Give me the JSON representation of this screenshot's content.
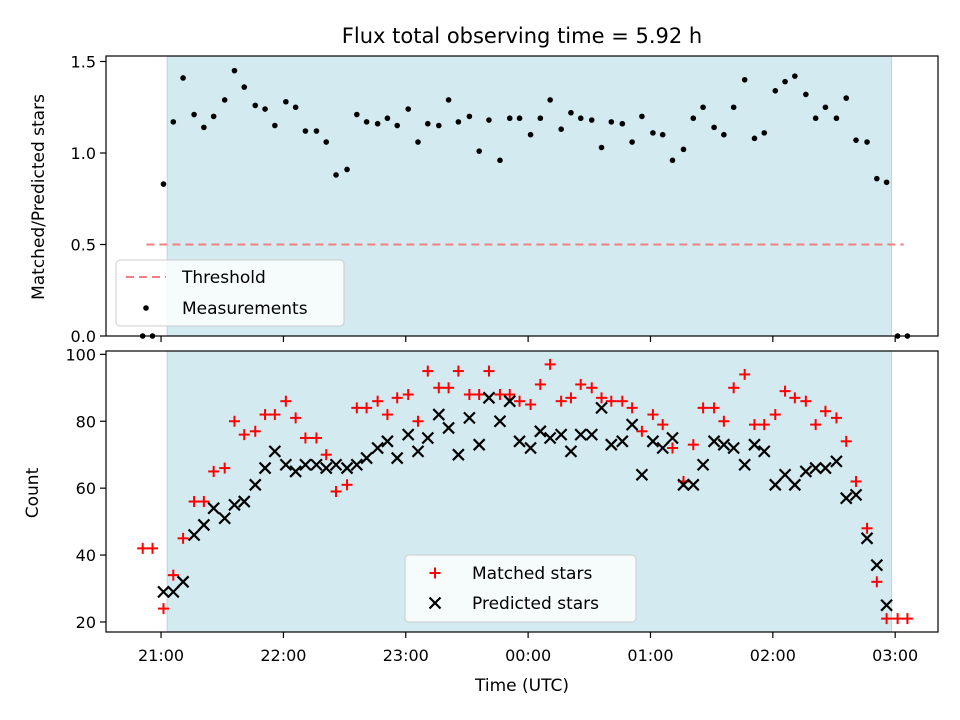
{
  "chart_data": [
    {
      "type": "scatter",
      "panel": "top",
      "title": "Flux total observing time = 5.92 h",
      "xlabel": "",
      "ylabel": "Matched/Predicted stars",
      "xlim": [
        -0.45,
        6.35
      ],
      "ylim": [
        0,
        1.53
      ],
      "yticks": [
        0.0,
        0.5,
        1.0,
        1.5
      ],
      "ytick_labels": [
        "0.0",
        "0.5",
        "1.0",
        "1.5"
      ],
      "grid": false,
      "shaded_span": [
        0.05,
        5.97
      ],
      "shaded_color": "#d3eaf0",
      "legend_location": "lower-left",
      "threshold": {
        "name": "Threshold",
        "value": 0.5,
        "x_range": [
          -0.12,
          6.07
        ],
        "color": "#f08080"
      },
      "series": [
        {
          "name": "Measurements",
          "color": "#000000",
          "x": [
            -0.15,
            -0.07,
            0.02,
            0.1,
            0.18,
            0.27,
            0.35,
            0.43,
            0.52,
            0.6,
            0.68,
            0.77,
            0.85,
            0.93,
            1.02,
            1.1,
            1.18,
            1.27,
            1.35,
            1.43,
            1.52,
            1.6,
            1.68,
            1.77,
            1.85,
            1.93,
            2.02,
            2.1,
            2.18,
            2.27,
            2.35,
            2.43,
            2.52,
            2.6,
            2.68,
            2.77,
            2.85,
            2.93,
            3.02,
            3.1,
            3.18,
            3.27,
            3.35,
            3.43,
            3.52,
            3.6,
            3.68,
            3.77,
            3.85,
            3.93,
            4.02,
            4.1,
            4.18,
            4.27,
            4.35,
            4.43,
            4.52,
            4.6,
            4.68,
            4.77,
            4.85,
            4.93,
            5.02,
            5.1,
            5.18,
            5.27,
            5.35,
            5.43,
            5.52,
            5.6,
            5.68,
            5.77,
            5.85,
            5.93,
            6.02,
            6.1
          ],
          "y": [
            0.0,
            0.0,
            0.83,
            1.17,
            1.41,
            1.21,
            1.14,
            1.2,
            1.29,
            1.45,
            1.36,
            1.26,
            1.24,
            1.15,
            1.28,
            1.25,
            1.12,
            1.12,
            1.06,
            0.88,
            0.91,
            1.21,
            1.17,
            1.16,
            1.19,
            1.15,
            1.24,
            1.06,
            1.16,
            1.15,
            1.29,
            1.17,
            1.2,
            1.01,
            1.18,
            0.96,
            1.19,
            1.19,
            1.1,
            1.19,
            1.29,
            1.13,
            1.22,
            1.19,
            1.18,
            1.03,
            1.17,
            1.16,
            1.06,
            1.2,
            1.11,
            1.1,
            0.96,
            1.02,
            1.19,
            1.25,
            1.14,
            1.1,
            1.25,
            1.4,
            1.08,
            1.11,
            1.34,
            1.39,
            1.42,
            1.32,
            1.19,
            1.25,
            1.19,
            1.3,
            1.07,
            1.06,
            0.86,
            0.84,
            0.0,
            0.0
          ]
        }
      ]
    },
    {
      "type": "scatter",
      "panel": "bottom",
      "xlabel": "Time (UTC)",
      "ylabel": "Count",
      "xlim": [
        -0.45,
        6.35
      ],
      "ylim": [
        17,
        101
      ],
      "xticks": [
        0,
        1,
        2,
        3,
        4,
        5,
        6
      ],
      "xtick_labels": [
        "21:00",
        "22:00",
        "23:00",
        "00:00",
        "01:00",
        "02:00",
        "03:00"
      ],
      "yticks": [
        20,
        40,
        60,
        80,
        100
      ],
      "ytick_labels": [
        "20",
        "40",
        "60",
        "80",
        "100"
      ],
      "grid": false,
      "shaded_span": [
        0.05,
        5.97
      ],
      "shaded_color": "#d3eaf0",
      "legend_location": "lower-center",
      "series": [
        {
          "name": "Matched stars",
          "marker": "plus",
          "color": "#ff0000",
          "x": [
            -0.15,
            -0.07,
            0.02,
            0.1,
            0.18,
            0.27,
            0.35,
            0.43,
            0.52,
            0.6,
            0.68,
            0.77,
            0.85,
            0.93,
            1.02,
            1.1,
            1.18,
            1.27,
            1.35,
            1.43,
            1.52,
            1.6,
            1.68,
            1.77,
            1.85,
            1.93,
            2.02,
            2.1,
            2.18,
            2.27,
            2.35,
            2.43,
            2.52,
            2.6,
            2.68,
            2.77,
            2.85,
            2.93,
            3.02,
            3.1,
            3.18,
            3.27,
            3.35,
            3.43,
            3.52,
            3.6,
            3.68,
            3.77,
            3.85,
            3.93,
            4.02,
            4.1,
            4.18,
            4.27,
            4.35,
            4.43,
            4.52,
            4.6,
            4.68,
            4.77,
            4.85,
            4.93,
            5.02,
            5.1,
            5.18,
            5.27,
            5.35,
            5.43,
            5.52,
            5.6,
            5.68,
            5.77,
            5.85,
            5.93,
            6.02,
            6.1
          ],
          "y": [
            42,
            42,
            24,
            34,
            45,
            56,
            56,
            65,
            66,
            80,
            76,
            77,
            82,
            82,
            86,
            81,
            75,
            75,
            70,
            59,
            61,
            84,
            84,
            86,
            82,
            87,
            88,
            80,
            95,
            90,
            90,
            95,
            88,
            88,
            95,
            88,
            88,
            86,
            85,
            91,
            97,
            86,
            87,
            91,
            90,
            87,
            86,
            86,
            84,
            77,
            82,
            79,
            72,
            62,
            73,
            84,
            84,
            80,
            90,
            94,
            79,
            79,
            82,
            89,
            87,
            86,
            79,
            83,
            81,
            74,
            62,
            48,
            32,
            21,
            21,
            21
          ]
        },
        {
          "name": "Predicted stars",
          "marker": "x",
          "color": "#000000",
          "x": [
            0.02,
            0.1,
            0.18,
            0.27,
            0.35,
            0.43,
            0.52,
            0.6,
            0.68,
            0.77,
            0.85,
            0.93,
            1.02,
            1.1,
            1.18,
            1.27,
            1.35,
            1.43,
            1.52,
            1.6,
            1.68,
            1.77,
            1.85,
            1.93,
            2.02,
            2.1,
            2.18,
            2.27,
            2.35,
            2.43,
            2.52,
            2.6,
            2.68,
            2.77,
            2.85,
            2.93,
            3.02,
            3.1,
            3.18,
            3.27,
            3.35,
            3.43,
            3.52,
            3.6,
            3.68,
            3.77,
            3.85,
            3.93,
            4.02,
            4.1,
            4.18,
            4.27,
            4.35,
            4.43,
            4.52,
            4.6,
            4.68,
            4.77,
            4.85,
            4.93,
            5.02,
            5.1,
            5.18,
            5.27,
            5.35,
            5.43,
            5.52,
            5.6,
            5.68,
            5.77,
            5.85,
            5.93
          ],
          "y": [
            29,
            29,
            32,
            46,
            49,
            54,
            51,
            55,
            56,
            61,
            66,
            71,
            67,
            65,
            67,
            67,
            66,
            67,
            66,
            67,
            69,
            72,
            74,
            69,
            76,
            71,
            75,
            82,
            78,
            70,
            81,
            73,
            87,
            80,
            86,
            74,
            72,
            77,
            75,
            76,
            71,
            76,
            76,
            84,
            73,
            74,
            79,
            64,
            74,
            72,
            75,
            61,
            61,
            67,
            74,
            73,
            72,
            67,
            73,
            71,
            61,
            64,
            61,
            65,
            66,
            66,
            68,
            57,
            58,
            45,
            37,
            25
          ]
        }
      ]
    }
  ]
}
